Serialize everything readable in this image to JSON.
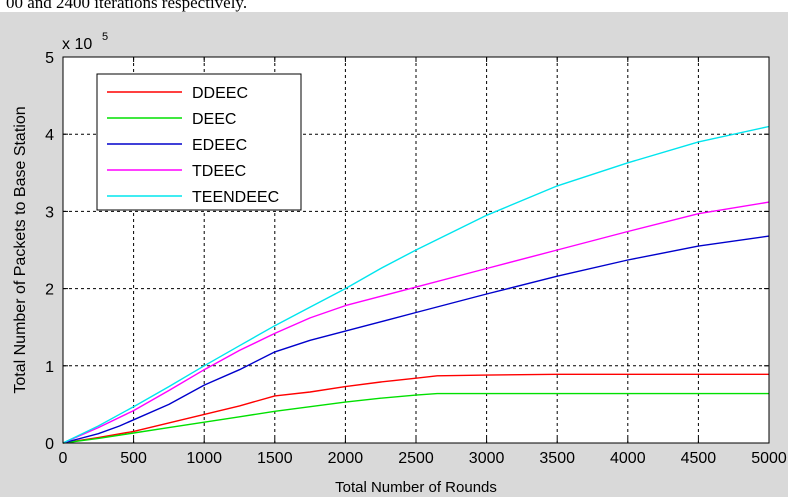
{
  "page_caption": "00 and 2400 iterations respectively.",
  "chart_data": {
    "type": "line",
    "xlabel": "Total Number of Rounds",
    "ylabel": "Total Number of Packets to Base Station",
    "y_multiplier_label": "x 10",
    "y_multiplier_exponent": "5",
    "xlim": [
      0,
      5000
    ],
    "ylim": [
      0,
      5
    ],
    "x_ticks": [
      0,
      500,
      1000,
      1500,
      2000,
      2500,
      3000,
      3500,
      4000,
      4500,
      5000
    ],
    "y_ticks": [
      0,
      1,
      2,
      3,
      4,
      5
    ],
    "grid": true,
    "grid_style": "dashed",
    "legend_position": "top-left",
    "background_color": "#d9d9d9",
    "plot_background_color": "#ffffff",
    "series": [
      {
        "name": "DDEEC",
        "color": "#ff0000",
        "x": [
          0,
          250,
          500,
          750,
          1000,
          1250,
          1500,
          1750,
          2000,
          2250,
          2500,
          2650,
          3000,
          3500,
          4000,
          4500,
          5000
        ],
        "y": [
          0,
          0.07,
          0.15,
          0.26,
          0.37,
          0.48,
          0.61,
          0.66,
          0.73,
          0.79,
          0.84,
          0.87,
          0.88,
          0.89,
          0.89,
          0.89,
          0.89
        ]
      },
      {
        "name": "DEEC",
        "color": "#00e000",
        "x": [
          0,
          250,
          500,
          750,
          1000,
          1250,
          1500,
          1750,
          2000,
          2250,
          2500,
          2650,
          3000,
          3500,
          4000,
          4500,
          5000
        ],
        "y": [
          0,
          0.06,
          0.13,
          0.2,
          0.27,
          0.34,
          0.41,
          0.47,
          0.53,
          0.58,
          0.62,
          0.64,
          0.64,
          0.64,
          0.64,
          0.64,
          0.64
        ]
      },
      {
        "name": "EDEEC",
        "color": "#0000cc",
        "x": [
          0,
          250,
          400,
          500,
          750,
          1000,
          1250,
          1500,
          1750,
          2000,
          2250,
          2500,
          3000,
          3500,
          4000,
          4500,
          5000
        ],
        "y": [
          0,
          0.12,
          0.22,
          0.3,
          0.5,
          0.75,
          0.95,
          1.18,
          1.33,
          1.45,
          1.57,
          1.69,
          1.93,
          2.16,
          2.37,
          2.55,
          2.68
        ]
      },
      {
        "name": "TDEEC",
        "color": "#ff00ff",
        "x": [
          0,
          250,
          500,
          750,
          1000,
          1250,
          1500,
          1750,
          2000,
          2250,
          2500,
          3000,
          3500,
          4000,
          4500,
          5000
        ],
        "y": [
          0,
          0.2,
          0.42,
          0.68,
          0.95,
          1.2,
          1.42,
          1.62,
          1.78,
          1.9,
          2.02,
          2.26,
          2.5,
          2.74,
          2.97,
          3.12
        ]
      },
      {
        "name": "TEENDEEC",
        "color": "#00e5ee",
        "x": [
          0,
          250,
          500,
          750,
          1000,
          1250,
          1500,
          1750,
          2000,
          2250,
          2500,
          3000,
          3500,
          4000,
          4500,
          5000
        ],
        "y": [
          0,
          0.22,
          0.47,
          0.73,
          1.0,
          1.26,
          1.52,
          1.76,
          2.0,
          2.26,
          2.5,
          2.95,
          3.33,
          3.63,
          3.9,
          4.1
        ]
      }
    ]
  }
}
